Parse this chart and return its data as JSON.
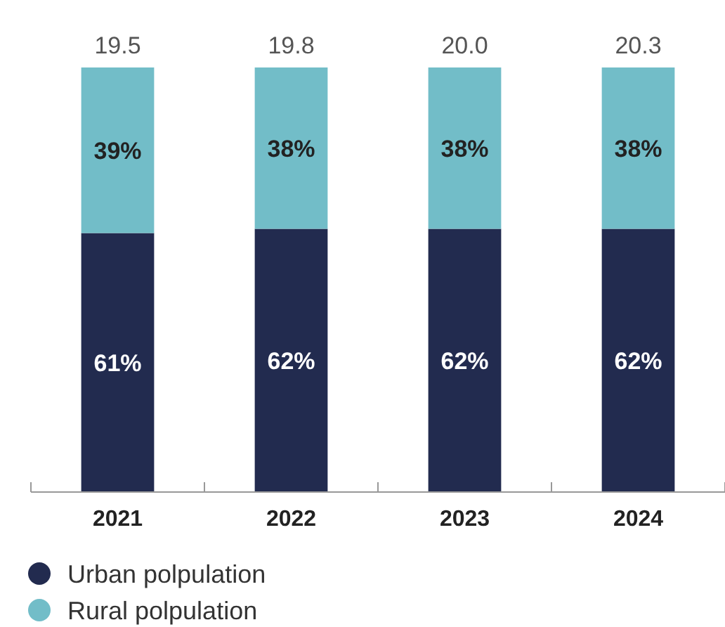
{
  "chart_data": {
    "type": "bar",
    "stacked": true,
    "categories": [
      "2021",
      "2022",
      "2023",
      "2024"
    ],
    "series": [
      {
        "name": "Urban polpulation",
        "color": "#222b4f",
        "values": [
          61,
          62,
          62,
          62
        ],
        "value_labels": [
          "61%",
          "62%",
          "62%",
          "62%"
        ]
      },
      {
        "name": "Rural polpulation",
        "color": "#72bdc8",
        "values": [
          39,
          38,
          38,
          38
        ],
        "value_labels": [
          "39%",
          "38%",
          "38%",
          "38%"
        ]
      }
    ],
    "annotations": [
      {
        "text": "19.5",
        "x": "2021",
        "y": 100
      },
      {
        "text": "19.8",
        "x": "2022",
        "y": 100
      },
      {
        "text": "20.0",
        "x": "2023",
        "y": 100
      },
      {
        "text": "20.3",
        "x": "2024",
        "y": 100
      }
    ],
    "legend": "bottom left"
  }
}
